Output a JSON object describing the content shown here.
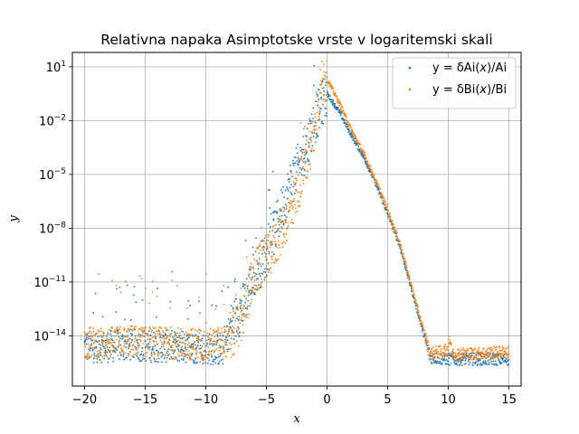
{
  "chart_data": {
    "type": "scatter",
    "title": "Relativna napaka Asimptotske vrste v logaritemski skali",
    "xlabel": "x",
    "ylabel": "y",
    "xlim": [
      -21,
      16
    ],
    "ylim_log10": [
      -16.8,
      1.8
    ],
    "yscale": "log",
    "grid": true,
    "legend_position": "top-right",
    "x_ticks": [
      {
        "value": -20,
        "label": "−20"
      },
      {
        "value": -15,
        "label": "−15"
      },
      {
        "value": -10,
        "label": "−10"
      },
      {
        "value": -5,
        "label": "−5"
      },
      {
        "value": 0,
        "label": "0"
      },
      {
        "value": 5,
        "label": "5"
      },
      {
        "value": 10,
        "label": "10"
      },
      {
        "value": 15,
        "label": "15"
      }
    ],
    "y_ticks": [
      {
        "exp": 1,
        "base": "10",
        "sup": "1"
      },
      {
        "exp": -2,
        "base": "10",
        "sup": "−2"
      },
      {
        "exp": -5,
        "base": "10",
        "sup": "−5"
      },
      {
        "exp": -8,
        "base": "10",
        "sup": "−8"
      },
      {
        "exp": -11,
        "base": "10",
        "sup": "−11"
      },
      {
        "exp": -14,
        "base": "10",
        "sup": "−14"
      }
    ],
    "series": [
      {
        "name": "y = δAi(x)/Ai",
        "legend_prefix": "y = δAi(",
        "legend_var": "x",
        "legend_suffix": ")/Ai",
        "color": "#1f77b4",
        "profile_log10": [
          [
            -20,
            -14.6
          ],
          [
            -18,
            -14.6
          ],
          [
            -16,
            -14.5
          ],
          [
            -14,
            -14.6
          ],
          [
            -12,
            -14.6
          ],
          [
            -10,
            -14.7
          ],
          [
            -8.5,
            -14.8
          ],
          [
            -8,
            -13.5
          ],
          [
            -7,
            -12.5
          ],
          [
            -6,
            -10.5
          ],
          [
            -5,
            -9.5
          ],
          [
            -4,
            -7.5
          ],
          [
            -3,
            -5.5
          ],
          [
            -2,
            -4.0
          ],
          [
            -1,
            -2.0
          ],
          [
            -0.5,
            -1.2
          ],
          [
            0,
            -0.5
          ],
          [
            1,
            -1.5
          ],
          [
            2,
            -2.8
          ],
          [
            3,
            -4.0
          ],
          [
            4,
            -5.5
          ],
          [
            5,
            -7.2
          ],
          [
            6,
            -9.0
          ],
          [
            7,
            -11.5
          ],
          [
            8,
            -14.0
          ],
          [
            8.5,
            -15.2
          ],
          [
            10,
            -15.3
          ],
          [
            12,
            -15.3
          ],
          [
            15,
            -15.3
          ]
        ]
      },
      {
        "name": "y = δBi(x)/Bi",
        "legend_prefix": "y = δBi(",
        "legend_var": "x",
        "legend_suffix": ")/Bi",
        "color": "#ff7f0e",
        "profile_log10": [
          [
            -20,
            -14.4
          ],
          [
            -18,
            -14.4
          ],
          [
            -16,
            -14.3
          ],
          [
            -14,
            -14.4
          ],
          [
            -12,
            -14.4
          ],
          [
            -10,
            -14.5
          ],
          [
            -8,
            -14.3
          ],
          [
            -7,
            -13.0
          ],
          [
            -6,
            -10.5
          ],
          [
            -5,
            -9.8
          ],
          [
            -4,
            -8.5
          ],
          [
            -3,
            -7.0
          ],
          [
            -2,
            -5.0
          ],
          [
            -1,
            -2.5
          ],
          [
            -0.5,
            0.0
          ],
          [
            0,
            0.3
          ],
          [
            1,
            -1.0
          ],
          [
            2,
            -2.5
          ],
          [
            3,
            -3.8
          ],
          [
            4,
            -5.3
          ],
          [
            5,
            -7.0
          ],
          [
            6,
            -8.8
          ],
          [
            7,
            -11.3
          ],
          [
            8,
            -13.8
          ],
          [
            8.5,
            -15.0
          ],
          [
            10,
            -14.8
          ],
          [
            10.1,
            -14.0
          ],
          [
            10.3,
            -15.0
          ],
          [
            12,
            -15.0
          ],
          [
            15,
            -14.9
          ]
        ]
      }
    ]
  }
}
